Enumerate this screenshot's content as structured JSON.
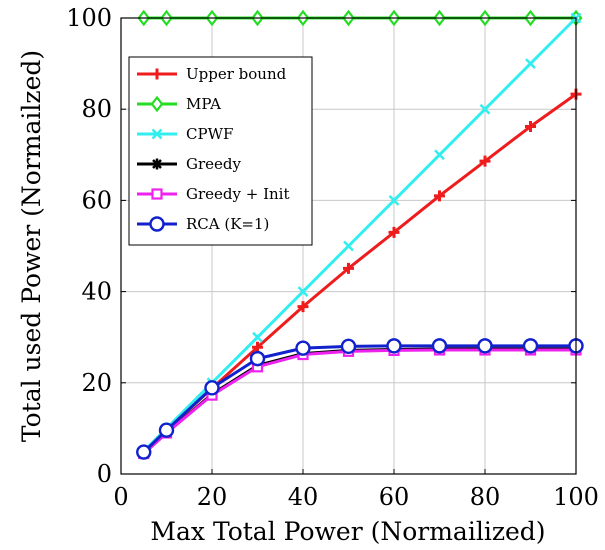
{
  "chart_data": {
    "type": "line",
    "title": "",
    "xlabel": "Max Total Power (Normailized)",
    "ylabel": "Total used Power (Normailzed)",
    "xlim": [
      0,
      100
    ],
    "ylim": [
      0,
      100
    ],
    "xticks": [
      0,
      20,
      40,
      60,
      80,
      100
    ],
    "yticks": [
      0,
      20,
      40,
      60,
      80,
      100
    ],
    "grid": true,
    "legend_position": "top-left",
    "series": [
      {
        "name": "Upper bound",
        "color": "#ee1c1c",
        "marker": "plus",
        "x": [
          5,
          10,
          20,
          30,
          40,
          50,
          60,
          70,
          80,
          90,
          100
        ],
        "y": [
          4.7,
          9.5,
          18.8,
          27.8,
          36.7,
          45.1,
          53.0,
          61.0,
          68.6,
          76.2,
          83.3
        ]
      },
      {
        "name": "MPA",
        "color": "#22dd22",
        "marker": "diamond",
        "x": [
          5,
          10,
          20,
          30,
          40,
          50,
          60,
          70,
          80,
          90,
          100
        ],
        "y": [
          100,
          100,
          100,
          100,
          100,
          100,
          100,
          100,
          100,
          100,
          100
        ]
      },
      {
        "name": "CPWF",
        "color": "#33eeee",
        "marker": "x",
        "x": [
          5,
          10,
          20,
          30,
          40,
          50,
          60,
          70,
          80,
          90,
          100
        ],
        "y": [
          5,
          10,
          20,
          30,
          40,
          50,
          60,
          70,
          80,
          90,
          100
        ]
      },
      {
        "name": "Greedy",
        "color": "#000000",
        "marker": "star",
        "x": [
          5,
          10,
          20,
          30,
          40,
          50,
          60,
          70,
          80,
          90,
          100
        ],
        "y": [
          4.5,
          9.0,
          17.5,
          23.8,
          26.4,
          27.1,
          27.3,
          27.4,
          27.4,
          27.4,
          27.4
        ]
      },
      {
        "name": "Greedy + Init",
        "color": "#ee22ee",
        "marker": "square",
        "x": [
          5,
          10,
          20,
          30,
          40,
          50,
          60,
          70,
          80,
          90,
          100
        ],
        "y": [
          4.5,
          9.0,
          17.3,
          23.5,
          26.2,
          26.9,
          27.1,
          27.2,
          27.2,
          27.2,
          27.2
        ]
      },
      {
        "name": "RCA (K=1)",
        "color": "#1122cc",
        "marker": "circle",
        "x": [
          5,
          10,
          20,
          30,
          40,
          50,
          60,
          70,
          80,
          90,
          100
        ],
        "y": [
          4.8,
          9.6,
          18.9,
          25.3,
          27.6,
          28.0,
          28.1,
          28.1,
          28.1,
          28.1,
          28.1
        ]
      }
    ]
  }
}
